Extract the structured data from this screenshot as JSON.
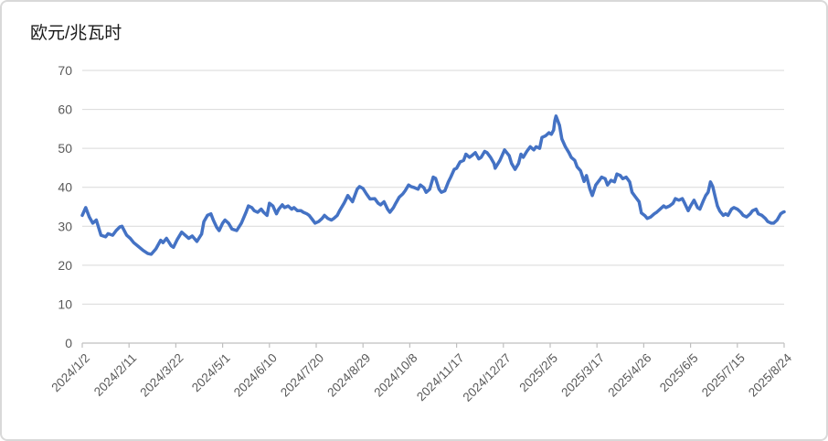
{
  "page": {
    "title": "欧元/兆瓦时"
  },
  "colors": {
    "line": "#4472C4",
    "gridline": "#d9d9d9",
    "axis": "#bfbfbf",
    "tick_label": "#595959",
    "title_text": "#1a1a1a",
    "card_border": "#d9d9d9",
    "background": "#ffffff"
  },
  "chart_data": {
    "type": "line",
    "title": "欧元/兆瓦时",
    "xlabel": "",
    "ylabel": "",
    "ylim": [
      0,
      70
    ],
    "y_ticks": [
      0,
      10,
      20,
      30,
      40,
      50,
      60,
      70
    ],
    "grid": true,
    "legend": "none",
    "x_min": "2024/1/2",
    "x_max": "2025/8/24",
    "x_tick_interval_days": 40,
    "x_tick_labels": [
      "2024/1/2",
      "2024/2/11",
      "2024/3/22",
      "2024/5/1",
      "2024/6/10",
      "2024/7/20",
      "2024/8/29",
      "2024/10/8",
      "2024/11/17",
      "2024/12/27",
      "2025/2/5",
      "2025/3/17",
      "2025/4/26",
      "2025/6/5",
      "2025/7/15",
      "2025/8/24"
    ],
    "line_color": "#4472C4",
    "series": [
      {
        "name": "欧元/兆瓦时",
        "points": [
          [
            "2024/1/2",
            32.8
          ],
          [
            "2024/1/5",
            34.8
          ],
          [
            "2024/1/8",
            32.4
          ],
          [
            "2024/1/11",
            30.8
          ],
          [
            "2024/1/14",
            31.6
          ],
          [
            "2024/1/18",
            27.7
          ],
          [
            "2024/1/22",
            27.3
          ],
          [
            "2024/1/24",
            28.1
          ],
          [
            "2024/1/28",
            27.7
          ],
          [
            "2024/1/31",
            28.9
          ],
          [
            "2024/2/3",
            29.8
          ],
          [
            "2024/2/5",
            30.0
          ],
          [
            "2024/2/9",
            27.7
          ],
          [
            "2024/2/12",
            26.9
          ],
          [
            "2024/2/15",
            25.8
          ],
          [
            "2024/2/19",
            24.8
          ],
          [
            "2024/2/23",
            23.8
          ],
          [
            "2024/2/27",
            23.0
          ],
          [
            "2024/3/1",
            22.8
          ],
          [
            "2024/3/5",
            24.2
          ],
          [
            "2024/3/9",
            26.4
          ],
          [
            "2024/3/11",
            25.8
          ],
          [
            "2024/3/14",
            26.9
          ],
          [
            "2024/3/18",
            25.0
          ],
          [
            "2024/3/20",
            24.6
          ],
          [
            "2024/3/23",
            26.5
          ],
          [
            "2024/3/27",
            28.5
          ],
          [
            "2024/3/30",
            27.7
          ],
          [
            "2024/4/2",
            26.9
          ],
          [
            "2024/4/5",
            27.5
          ],
          [
            "2024/4/9",
            26.1
          ],
          [
            "2024/4/13",
            28.0
          ],
          [
            "2024/4/15",
            31.2
          ],
          [
            "2024/4/18",
            32.8
          ],
          [
            "2024/4/21",
            33.2
          ],
          [
            "2024/4/23",
            31.6
          ],
          [
            "2024/4/26",
            29.7
          ],
          [
            "2024/4/28",
            28.9
          ],
          [
            "2024/5/1",
            30.8
          ],
          [
            "2024/5/3",
            31.6
          ],
          [
            "2024/5/6",
            30.8
          ],
          [
            "2024/5/9",
            29.3
          ],
          [
            "2024/5/13",
            28.9
          ],
          [
            "2024/5/17",
            30.8
          ],
          [
            "2024/5/21",
            33.6
          ],
          [
            "2024/5/23",
            35.2
          ],
          [
            "2024/5/26",
            34.8
          ],
          [
            "2024/5/28",
            34.0
          ],
          [
            "2024/5/31",
            33.6
          ],
          [
            "2024/6/3",
            34.4
          ],
          [
            "2024/6/5",
            33.6
          ],
          [
            "2024/6/8",
            32.8
          ],
          [
            "2024/6/10",
            35.9
          ],
          [
            "2024/6/13",
            35.2
          ],
          [
            "2024/6/16",
            33.2
          ],
          [
            "2024/6/18",
            34.4
          ],
          [
            "2024/6/21",
            35.5
          ],
          [
            "2024/6/23",
            34.8
          ],
          [
            "2024/6/26",
            35.2
          ],
          [
            "2024/6/29",
            34.4
          ],
          [
            "2024/7/1",
            34.8
          ],
          [
            "2024/7/4",
            34.0
          ],
          [
            "2024/7/7",
            34.0
          ],
          [
            "2024/7/9",
            33.6
          ],
          [
            "2024/7/12",
            33.2
          ],
          [
            "2024/7/14",
            32.8
          ],
          [
            "2024/7/17",
            31.6
          ],
          [
            "2024/7/19",
            30.8
          ],
          [
            "2024/7/22",
            31.2
          ],
          [
            "2024/7/25",
            32.0
          ],
          [
            "2024/7/27",
            32.8
          ],
          [
            "2024/7/30",
            32.0
          ],
          [
            "2024/8/2",
            31.6
          ],
          [
            "2024/8/4",
            32.0
          ],
          [
            "2024/8/7",
            32.8
          ],
          [
            "2024/8/9",
            34.0
          ],
          [
            "2024/8/13",
            36.0
          ],
          [
            "2024/8/16",
            37.9
          ],
          [
            "2024/8/20",
            36.3
          ],
          [
            "2024/8/24",
            39.5
          ],
          [
            "2024/8/26",
            40.2
          ],
          [
            "2024/8/29",
            39.7
          ],
          [
            "2024/9/1",
            38.3
          ],
          [
            "2024/9/4",
            37.0
          ],
          [
            "2024/9/8",
            37.1
          ],
          [
            "2024/9/11",
            35.9
          ],
          [
            "2024/9/13",
            35.5
          ],
          [
            "2024/9/16",
            36.3
          ],
          [
            "2024/9/19",
            34.4
          ],
          [
            "2024/9/21",
            33.6
          ],
          [
            "2024/9/24",
            34.8
          ],
          [
            "2024/9/26",
            35.9
          ],
          [
            "2024/9/29",
            37.5
          ],
          [
            "2024/10/2",
            38.3
          ],
          [
            "2024/10/4",
            39.1
          ],
          [
            "2024/10/7",
            40.6
          ],
          [
            "2024/10/9",
            40.2
          ],
          [
            "2024/10/12",
            39.9
          ],
          [
            "2024/10/15",
            39.5
          ],
          [
            "2024/10/17",
            40.6
          ],
          [
            "2024/10/20",
            39.9
          ],
          [
            "2024/10/22",
            38.7
          ],
          [
            "2024/10/25",
            39.5
          ],
          [
            "2024/10/28",
            42.6
          ],
          [
            "2024/10/30",
            42.3
          ],
          [
            "2024/11/2",
            39.5
          ],
          [
            "2024/11/4",
            38.7
          ],
          [
            "2024/11/7",
            39.1
          ],
          [
            "2024/11/10",
            41.4
          ],
          [
            "2024/11/12",
            42.6
          ],
          [
            "2024/11/15",
            44.6
          ],
          [
            "2024/11/17",
            44.9
          ],
          [
            "2024/11/20",
            46.5
          ],
          [
            "2024/11/23",
            46.9
          ],
          [
            "2024/11/25",
            48.5
          ],
          [
            "2024/11/28",
            47.7
          ],
          [
            "2024/11/30",
            48.1
          ],
          [
            "2024/12/3",
            48.9
          ],
          [
            "2024/12/6",
            47.3
          ],
          [
            "2024/12/8",
            47.7
          ],
          [
            "2024/12/11",
            49.2
          ],
          [
            "2024/12/13",
            48.9
          ],
          [
            "2024/12/16",
            47.7
          ],
          [
            "2024/12/19",
            46.1
          ],
          [
            "2024/12/20",
            44.9
          ],
          [
            "2024/12/24",
            46.9
          ],
          [
            "2024/12/28",
            49.6
          ],
          [
            "2025/1/1",
            48.1
          ],
          [
            "2025/1/3",
            46.1
          ],
          [
            "2025/1/6",
            44.6
          ],
          [
            "2025/1/9",
            46.1
          ],
          [
            "2025/1/11",
            48.5
          ],
          [
            "2025/1/13",
            47.7
          ],
          [
            "2025/1/16",
            49.2
          ],
          [
            "2025/1/19",
            50.4
          ],
          [
            "2025/1/22",
            49.6
          ],
          [
            "2025/1/24",
            50.4
          ],
          [
            "2025/1/27",
            50.0
          ],
          [
            "2025/1/29",
            52.8
          ],
          [
            "2025/2/1",
            53.2
          ],
          [
            "2025/2/4",
            54.0
          ],
          [
            "2025/2/6",
            53.6
          ],
          [
            "2025/2/8",
            54.7
          ],
          [
            "2025/2/9",
            57.1
          ],
          [
            "2025/2/10",
            58.3
          ],
          [
            "2025/2/13",
            55.9
          ],
          [
            "2025/2/15",
            52.4
          ],
          [
            "2025/2/18",
            50.4
          ],
          [
            "2025/2/21",
            48.9
          ],
          [
            "2025/2/23",
            47.7
          ],
          [
            "2025/2/26",
            46.9
          ],
          [
            "2025/2/28",
            45.3
          ],
          [
            "2025/3/3",
            44.2
          ],
          [
            "2025/3/6",
            41.5
          ],
          [
            "2025/3/8",
            43.0
          ],
          [
            "2025/3/11",
            39.5
          ],
          [
            "2025/3/13",
            37.9
          ],
          [
            "2025/3/16",
            40.6
          ],
          [
            "2025/3/19",
            41.8
          ],
          [
            "2025/3/21",
            42.6
          ],
          [
            "2025/3/24",
            42.2
          ],
          [
            "2025/3/26",
            40.6
          ],
          [
            "2025/3/29",
            41.8
          ],
          [
            "2025/4/1",
            41.4
          ],
          [
            "2025/4/3",
            43.4
          ],
          [
            "2025/4/6",
            43.0
          ],
          [
            "2025/4/8",
            42.2
          ],
          [
            "2025/4/11",
            42.6
          ],
          [
            "2025/4/14",
            41.4
          ],
          [
            "2025/4/16",
            38.7
          ],
          [
            "2025/4/19",
            37.5
          ],
          [
            "2025/4/22",
            36.3
          ],
          [
            "2025/4/24",
            33.4
          ],
          [
            "2025/4/27",
            32.7
          ],
          [
            "2025/4/29",
            32.0
          ],
          [
            "2025/5/2",
            32.4
          ],
          [
            "2025/5/5",
            33.2
          ],
          [
            "2025/5/7",
            33.6
          ],
          [
            "2025/5/10",
            34.4
          ],
          [
            "2025/5/13",
            35.2
          ],
          [
            "2025/5/15",
            34.8
          ],
          [
            "2025/5/18",
            35.2
          ],
          [
            "2025/5/21",
            35.9
          ],
          [
            "2025/5/23",
            37.1
          ],
          [
            "2025/5/26",
            36.7
          ],
          [
            "2025/5/29",
            37.1
          ],
          [
            "2025/5/31",
            35.9
          ],
          [
            "2025/6/3",
            34.0
          ],
          [
            "2025/6/5",
            35.2
          ],
          [
            "2025/6/8",
            36.7
          ],
          [
            "2025/6/11",
            34.8
          ],
          [
            "2025/6/13",
            34.4
          ],
          [
            "2025/6/16",
            36.6
          ],
          [
            "2025/6/18",
            37.9
          ],
          [
            "2025/6/20",
            38.7
          ],
          [
            "2025/6/22",
            41.4
          ],
          [
            "2025/6/24",
            40.2
          ],
          [
            "2025/6/26",
            37.6
          ],
          [
            "2025/6/28",
            35.2
          ],
          [
            "2025/6/30",
            33.9
          ],
          [
            "2025/7/3",
            32.8
          ],
          [
            "2025/7/5",
            33.2
          ],
          [
            "2025/7/7",
            32.8
          ],
          [
            "2025/7/10",
            34.4
          ],
          [
            "2025/7/12",
            34.8
          ],
          [
            "2025/7/15",
            34.4
          ],
          [
            "2025/7/18",
            33.6
          ],
          [
            "2025/7/20",
            32.8
          ],
          [
            "2025/7/23",
            32.4
          ],
          [
            "2025/7/26",
            33.2
          ],
          [
            "2025/7/28",
            34.0
          ],
          [
            "2025/7/31",
            34.4
          ],
          [
            "2025/8/2",
            33.2
          ],
          [
            "2025/8/5",
            32.8
          ],
          [
            "2025/8/8",
            32.0
          ],
          [
            "2025/8/10",
            31.2
          ],
          [
            "2025/8/13",
            30.8
          ],
          [
            "2025/8/15",
            30.8
          ],
          [
            "2025/8/18",
            31.6
          ],
          [
            "2025/8/21",
            33.2
          ],
          [
            "2025/8/23",
            33.6
          ],
          [
            "2025/8/24",
            33.7
          ]
        ]
      }
    ]
  }
}
